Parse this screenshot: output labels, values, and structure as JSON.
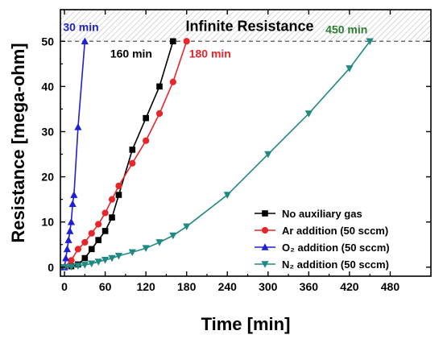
{
  "chart_data": {
    "type": "line",
    "xlabel": "Time [min]",
    "ylabel": "Resistance [mega-ohm]",
    "xlim": [
      -6,
      540
    ],
    "ylim": [
      -2,
      57
    ],
    "xticks": [
      0,
      60,
      120,
      180,
      240,
      300,
      360,
      420,
      480
    ],
    "yticks": [
      0,
      10,
      20,
      30,
      40,
      50
    ],
    "grid": false,
    "legend_position": "bottom-right",
    "limit_line": {
      "value": 50,
      "label": "Infinite Resistance"
    },
    "annotations": [
      {
        "text": "30 min",
        "x": 30,
        "y": 50,
        "color": "#1f1fd6"
      },
      {
        "text": "160 min",
        "x": 160,
        "y": 50,
        "color": "#000000"
      },
      {
        "text": "180 min",
        "x": 180,
        "y": 50,
        "color": "#e8252a"
      },
      {
        "text": "450 min",
        "x": 450,
        "y": 50,
        "color": "#2e7d32"
      }
    ],
    "series": [
      {
        "name": "No auxiliary gas",
        "color": "#000000",
        "marker": "square",
        "x": [
          0,
          10,
          20,
          30,
          40,
          50,
          60,
          70,
          80,
          100,
          120,
          140,
          160
        ],
        "y": [
          0,
          0.2,
          0.6,
          2,
          4,
          6,
          8,
          11,
          16,
          26,
          33,
          40,
          50
        ]
      },
      {
        "name": "Ar addition (50 sccm)",
        "color": "#e8252a",
        "marker": "circle",
        "x": [
          0,
          10,
          20,
          30,
          40,
          50,
          60,
          70,
          80,
          100,
          120,
          140,
          160,
          180
        ],
        "y": [
          0,
          1.5,
          4,
          5.5,
          7.5,
          9.5,
          12,
          15,
          18,
          23,
          28,
          34,
          41,
          50
        ]
      },
      {
        "name": "O2 addition (50 sccm)",
        "color": "#1f1fd6",
        "marker": "triangle-up",
        "x": [
          0,
          2,
          4,
          6,
          8,
          10,
          12,
          14,
          20,
          30
        ],
        "y": [
          0,
          2,
          4,
          6,
          8,
          10,
          14,
          16,
          31,
          50
        ]
      },
      {
        "name": "N2 addition (50 sccm)",
        "color": "#1f8a82",
        "marker": "triangle-down",
        "x": [
          0,
          10,
          20,
          30,
          40,
          50,
          60,
          70,
          80,
          100,
          120,
          140,
          160,
          180,
          240,
          300,
          360,
          420,
          450
        ],
        "y": [
          0,
          0.1,
          0.3,
          0.5,
          0.8,
          1.2,
          1.6,
          2,
          2.5,
          3.3,
          4.2,
          5.5,
          7,
          9,
          16,
          25,
          34,
          44,
          50
        ]
      }
    ],
    "legend": [
      {
        "label": "No auxiliary gas",
        "color": "#000000",
        "marker": "square"
      },
      {
        "label": "Ar addition (50 sccm)",
        "color": "#e8252a",
        "marker": "circle"
      },
      {
        "label": "O₂ addition (50 sccm)",
        "color": "#1f1fd6",
        "marker": "triangle-up"
      },
      {
        "label": "N₂ addition (50 sccm)",
        "color": "#1f8a82",
        "marker": "triangle-down"
      }
    ]
  }
}
